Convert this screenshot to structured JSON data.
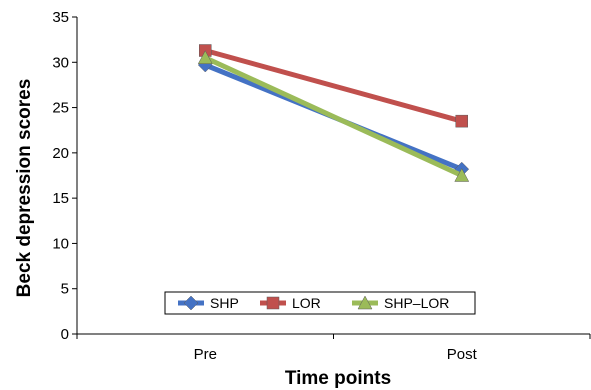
{
  "chart_data": {
    "type": "line",
    "categories": [
      "Pre",
      "Post"
    ],
    "series": [
      {
        "name": "SHP",
        "values": [
          29.7,
          18.2
        ],
        "color": "#4472C4",
        "marker": "diamond"
      },
      {
        "name": "LOR",
        "values": [
          31.3,
          23.5
        ],
        "color": "#C0504D",
        "marker": "square"
      },
      {
        "name": "SHP–LOR",
        "values": [
          30.5,
          17.5
        ],
        "color": "#9BBB59",
        "marker": "triangle"
      }
    ],
    "xlabel": "Time points",
    "ylabel": "Beck depression scores",
    "ylim": [
      0,
      35
    ],
    "yticks": [
      0,
      5,
      10,
      15,
      20,
      25,
      30,
      35
    ],
    "grid": false,
    "legend_position": "bottom-center inside plot"
  }
}
